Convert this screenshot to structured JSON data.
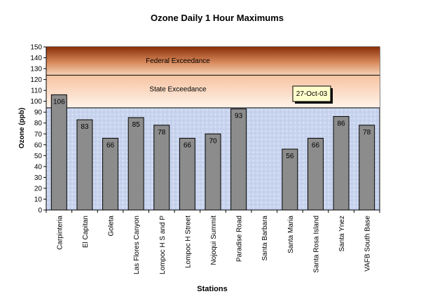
{
  "chart_data": {
    "type": "bar",
    "title": "Ozone Daily 1 Hour Maximums",
    "xlabel": "Stations",
    "ylabel": "Ozone (ppb)",
    "ylim": [
      0,
      150
    ],
    "yticks": [
      0,
      10,
      20,
      30,
      40,
      50,
      60,
      70,
      80,
      90,
      100,
      110,
      120,
      130,
      140,
      150
    ],
    "grid": false,
    "categories": [
      "Carpinteria",
      "El Capitan",
      "Goleta",
      "Las Flores Canyon",
      "Lompoc H S and P",
      "Lompoc H Street",
      "Nojoqui Summit",
      "Paradise Road",
      "Santa Barbara",
      "Santa Maria",
      "Santa Rosa Island",
      "Santa Ynez",
      "VAFB South Base"
    ],
    "values": [
      106,
      83,
      66,
      85,
      78,
      66,
      70,
      93,
      null,
      56,
      66,
      86,
      78
    ],
    "data_labels": [
      "106",
      "83",
      "66",
      "85",
      "78",
      "66",
      "70",
      "93",
      "",
      "56",
      "66",
      "86",
      "78"
    ],
    "bands": [
      {
        "label": "Federal Exceedance",
        "from": 124,
        "to": 150,
        "color_top": "#8a2e08",
        "color_bottom": "#f6d4b8"
      },
      {
        "label": "State Exceedance",
        "from": 94,
        "to": 124,
        "color_top": "#f6c2a0",
        "color_bottom": "#fff4ea"
      }
    ],
    "annotation": "27-Oct-03",
    "colors": {
      "bar": "#8c8c8c",
      "plot_background": "#c8d4ee",
      "annotation_background": "#ffffcc"
    }
  }
}
